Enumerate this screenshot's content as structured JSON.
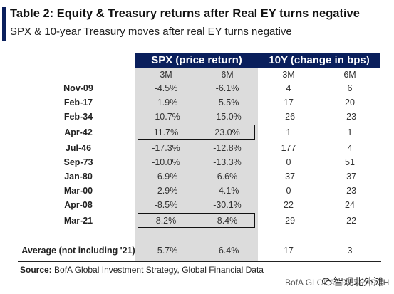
{
  "header": {
    "title": "Table 2: Equity & Treasury returns after Real EY turns negative",
    "subtitle": "SPX & 10-year Treasury moves after real EY turns negative"
  },
  "columns": {
    "group_spx": "SPX (price return)",
    "group_10y": "10Y (change in bps)",
    "sub": [
      "3M",
      "6M",
      "3M",
      "6M"
    ]
  },
  "rows": [
    {
      "label": "Nov-09",
      "spx_3m": "-4.5%",
      "spx_6m": "-6.1%",
      "y_3m": "4",
      "y_6m": "6"
    },
    {
      "label": "Feb-17",
      "spx_3m": "-1.9%",
      "spx_6m": "-5.5%",
      "y_3m": "17",
      "y_6m": "20"
    },
    {
      "label": "Feb-34",
      "spx_3m": "-10.7%",
      "spx_6m": "-15.0%",
      "y_3m": "-26",
      "y_6m": "-23"
    },
    {
      "label": "Apr-42",
      "spx_3m": "11.7%",
      "spx_6m": "23.0%",
      "y_3m": "1",
      "y_6m": "1"
    },
    {
      "label": "Jul-46",
      "spx_3m": "-17.3%",
      "spx_6m": "-12.8%",
      "y_3m": "177",
      "y_6m": "4"
    },
    {
      "label": "Sep-73",
      "spx_3m": "-10.0%",
      "spx_6m": "-13.3%",
      "y_3m": "0",
      "y_6m": "51"
    },
    {
      "label": "Jan-80",
      "spx_3m": "-6.9%",
      "spx_6m": "6.6%",
      "y_3m": "-37",
      "y_6m": "-37"
    },
    {
      "label": "Mar-00",
      "spx_3m": "-2.9%",
      "spx_6m": "-4.1%",
      "y_3m": "0",
      "y_6m": "-23"
    },
    {
      "label": "Apr-08",
      "spx_3m": "-8.5%",
      "spx_6m": "-30.1%",
      "y_3m": "22",
      "y_6m": "24"
    },
    {
      "label": "Mar-21",
      "spx_3m": "8.2%",
      "spx_6m": "8.4%",
      "y_3m": "-29",
      "y_6m": "-22"
    }
  ],
  "average": {
    "label": "Average (not including '21)",
    "spx_3m": "-5.7%",
    "spx_6m": "-6.4%",
    "y_3m": "17",
    "y_6m": "3"
  },
  "source": {
    "prefix": "Source:",
    "text": " BofA Global Investment Strategy, Global Financial Data"
  },
  "footer": "BofA GLOBAL RESEARCH",
  "watermark": "智观北外滩",
  "colors": {
    "header_bg": "#0a1f5c",
    "shade": "#dcdcdc"
  }
}
